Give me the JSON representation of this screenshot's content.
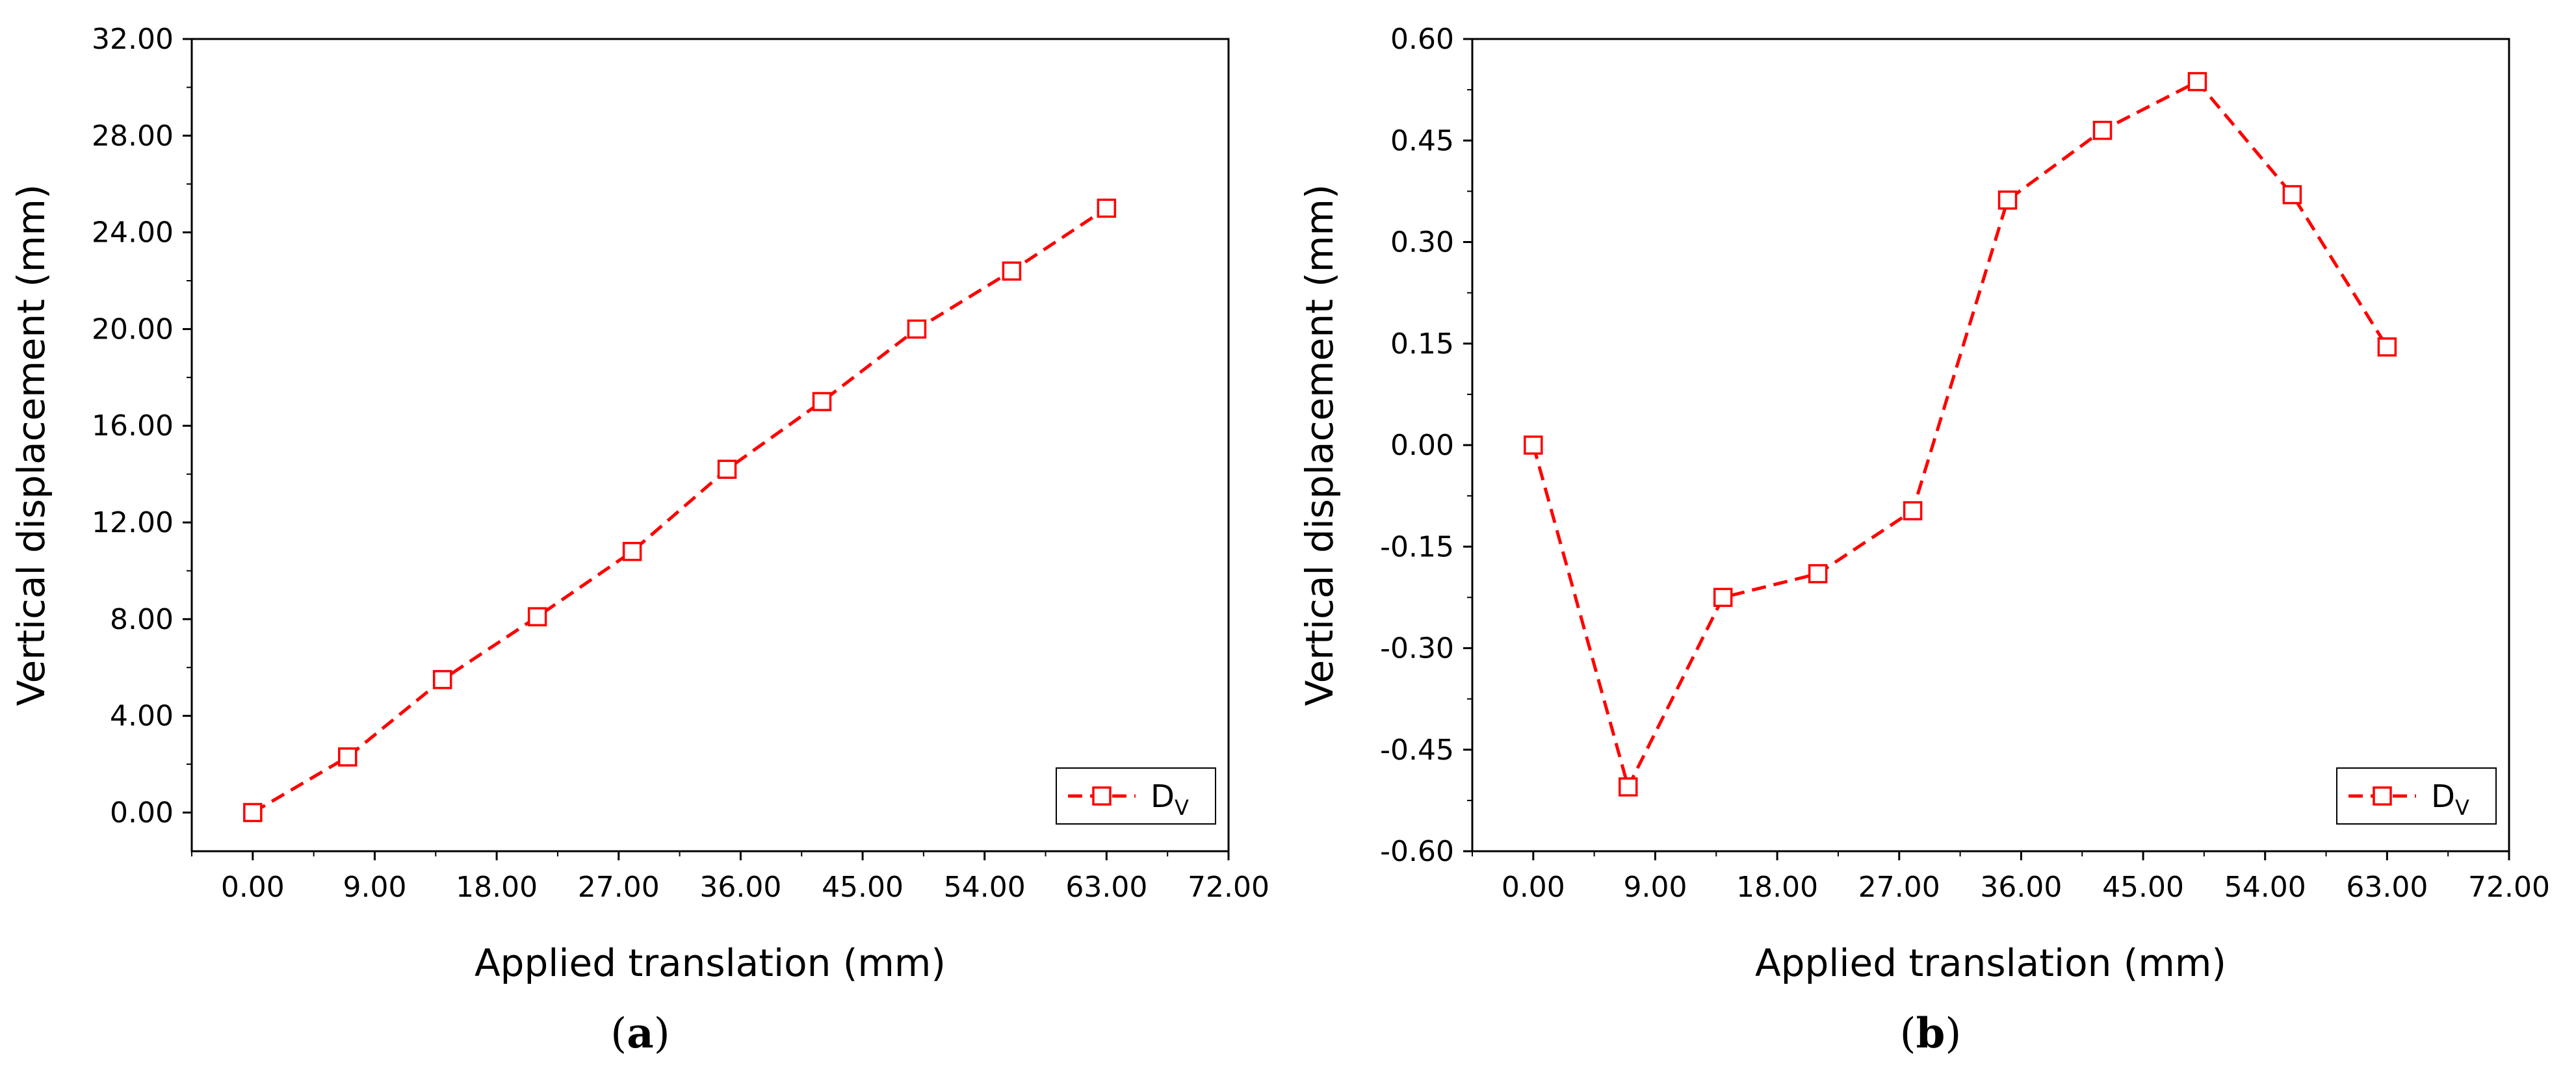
{
  "chart_data": [
    {
      "type": "line",
      "panel_label": "(a)",
      "panel_open": "(",
      "panel_letter": "a",
      "panel_close": ")",
      "xlabel": "Applied translation (mm)",
      "ylabel": "Vertical displacement (mm)",
      "xlim": [
        -4.5,
        72
      ],
      "ylim": [
        -1.6,
        32
      ],
      "xticks": [
        "0.00",
        "9.00",
        "18.00",
        "27.00",
        "36.00",
        "45.00",
        "54.00",
        "63.00",
        "72.00"
      ],
      "yticks": [
        "0.00",
        "4.00",
        "8.00",
        "12.00",
        "16.00",
        "20.00",
        "24.00",
        "28.00",
        "32.00"
      ],
      "legend_position": "bottom-right",
      "series": [
        {
          "name": "D_V",
          "legend_main": "D",
          "legend_sub": "V",
          "color": "#ff0000",
          "line_style": "dashed",
          "marker": "open-square",
          "x": [
            0,
            7,
            14,
            21,
            28,
            35,
            42,
            49,
            56,
            63
          ],
          "y": [
            0.0,
            2.3,
            5.5,
            8.1,
            10.8,
            14.2,
            17.0,
            20.0,
            22.4,
            25.0
          ]
        }
      ]
    },
    {
      "type": "line",
      "panel_label": "(b)",
      "panel_open": "(",
      "panel_letter": "b",
      "panel_close": ")",
      "xlabel": "Applied translation (mm)",
      "ylabel": "Vertical displacement (mm)",
      "xlim": [
        -4.5,
        72
      ],
      "ylim": [
        -0.6,
        0.6
      ],
      "xticks": [
        "0.00",
        "9.00",
        "18.00",
        "27.00",
        "36.00",
        "45.00",
        "54.00",
        "63.00",
        "72.00"
      ],
      "yticks": [
        "-0.60",
        "-0.45",
        "-0.30",
        "-0.15",
        "0.00",
        "0.15",
        "0.30",
        "0.45",
        "0.60"
      ],
      "legend_position": "bottom-right",
      "series": [
        {
          "name": "D_V",
          "legend_main": "D",
          "legend_sub": "V",
          "color": "#ff0000",
          "line_style": "dashed",
          "marker": "open-square",
          "x": [
            0,
            7,
            14,
            21,
            28,
            35,
            42,
            49,
            56,
            63
          ],
          "y": [
            0.0,
            -0.505,
            -0.225,
            -0.19,
            -0.097,
            0.362,
            0.465,
            0.537,
            0.37,
            0.145
          ]
        }
      ]
    }
  ]
}
